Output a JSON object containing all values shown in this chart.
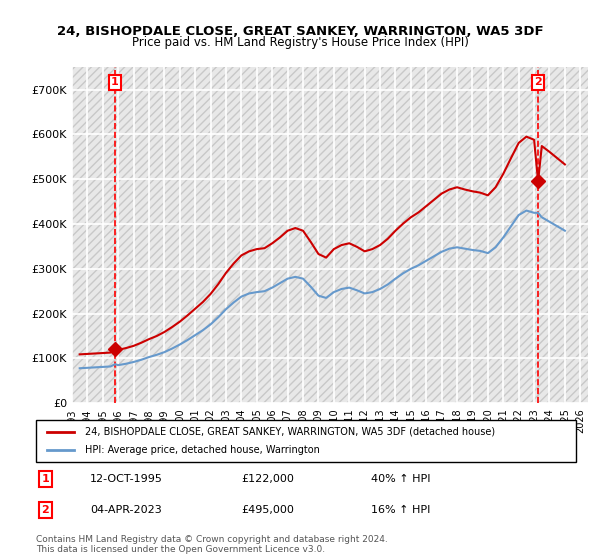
{
  "title_line1": "24, BISHOPDALE CLOSE, GREAT SANKEY, WARRINGTON, WA5 3DF",
  "title_line2": "Price paid vs. HM Land Registry's House Price Index (HPI)",
  "xlabel": "",
  "ylabel": "",
  "ylim": [
    0,
    750000
  ],
  "yticks": [
    0,
    100000,
    200000,
    300000,
    400000,
    500000,
    600000,
    700000
  ],
  "ytick_labels": [
    "£0",
    "£100K",
    "£200K",
    "£300K",
    "£400K",
    "£500K",
    "£600K",
    "£700K"
  ],
  "background_color": "#ffffff",
  "plot_bg_color": "#f0f0f0",
  "hatch_color": "#d8d8d8",
  "grid_color": "#ffffff",
  "legend_entry1": "24, BISHOPDALE CLOSE, GREAT SANKEY, WARRINGTON, WA5 3DF (detached house)",
  "legend_entry2": "HPI: Average price, detached house, Warrington",
  "sale1_date": "12-OCT-1995",
  "sale1_price": 122000,
  "sale1_hpi": "40% ↑ HPI",
  "sale2_date": "04-APR-2023",
  "sale2_price": 495000,
  "sale2_hpi": "16% ↑ HPI",
  "footer": "Contains HM Land Registry data © Crown copyright and database right 2024.\nThis data is licensed under the Open Government Licence v3.0.",
  "line_color_red": "#cc0000",
  "line_color_blue": "#6699cc",
  "marker_color": "#cc0000",
  "sale_years": [
    1995.79,
    2023.26
  ],
  "hpi_x": [
    1993.5,
    1994.0,
    1994.5,
    1995.0,
    1995.5,
    1995.79,
    1996.0,
    1996.5,
    1997.0,
    1997.5,
    1998.0,
    1998.5,
    1999.0,
    1999.5,
    2000.0,
    2000.5,
    2001.0,
    2001.5,
    2002.0,
    2002.5,
    2003.0,
    2003.5,
    2004.0,
    2004.5,
    2005.0,
    2005.5,
    2006.0,
    2006.5,
    2007.0,
    2007.5,
    2008.0,
    2008.5,
    2009.0,
    2009.5,
    2010.0,
    2010.5,
    2011.0,
    2011.5,
    2012.0,
    2012.5,
    2013.0,
    2013.5,
    2014.0,
    2014.5,
    2015.0,
    2015.5,
    2016.0,
    2016.5,
    2017.0,
    2017.5,
    2018.0,
    2018.5,
    2019.0,
    2019.5,
    2020.0,
    2020.5,
    2021.0,
    2021.5,
    2022.0,
    2022.5,
    2023.0,
    2023.26,
    2023.5,
    2024.0,
    2024.5,
    2025.0
  ],
  "hpi_y": [
    78000,
    79000,
    80000,
    81000,
    82000,
    87000,
    85000,
    88000,
    92000,
    97000,
    103000,
    108000,
    114000,
    122000,
    131000,
    141000,
    152000,
    163000,
    176000,
    192000,
    210000,
    225000,
    238000,
    245000,
    248000,
    250000,
    258000,
    268000,
    278000,
    282000,
    278000,
    260000,
    240000,
    235000,
    248000,
    255000,
    258000,
    252000,
    245000,
    248000,
    255000,
    265000,
    278000,
    290000,
    300000,
    308000,
    318000,
    328000,
    338000,
    345000,
    348000,
    345000,
    342000,
    340000,
    335000,
    348000,
    370000,
    395000,
    420000,
    430000,
    425000,
    425000,
    415000,
    405000,
    395000,
    385000
  ],
  "red_x": [
    1993.5,
    1994.0,
    1994.5,
    1995.0,
    1995.5,
    1995.79,
    1996.0,
    1996.5,
    1997.0,
    1997.5,
    1998.0,
    1998.5,
    1999.0,
    1999.5,
    2000.0,
    2000.5,
    2001.0,
    2001.5,
    2002.0,
    2002.5,
    2003.0,
    2003.5,
    2004.0,
    2004.5,
    2005.0,
    2005.5,
    2006.0,
    2006.5,
    2007.0,
    2007.5,
    2008.0,
    2008.5,
    2009.0,
    2009.5,
    2010.0,
    2010.5,
    2011.0,
    2011.5,
    2012.0,
    2012.5,
    2013.0,
    2013.5,
    2014.0,
    2014.5,
    2015.0,
    2015.5,
    2016.0,
    2016.5,
    2017.0,
    2017.5,
    2018.0,
    2018.5,
    2019.0,
    2019.5,
    2020.0,
    2020.5,
    2021.0,
    2021.5,
    2022.0,
    2022.5,
    2023.0,
    2023.26,
    2023.5,
    2024.0,
    2024.5,
    2025.0
  ],
  "red_y": [
    109000,
    110000,
    111000,
    112000,
    113000,
    122000,
    119000,
    123000,
    128000,
    135000,
    143000,
    150000,
    159000,
    170000,
    182000,
    196000,
    211000,
    226000,
    244000,
    266000,
    291000,
    312000,
    330000,
    339000,
    344000,
    346000,
    357000,
    370000,
    385000,
    391000,
    385000,
    360000,
    333000,
    325000,
    344000,
    353000,
    357000,
    349000,
    339000,
    344000,
    353000,
    367000,
    385000,
    401000,
    415000,
    426000,
    440000,
    454000,
    468000,
    477000,
    482000,
    477000,
    473000,
    470000,
    464000,
    482000,
    512000,
    547000,
    581000,
    595000,
    588000,
    495000,
    574000,
    561000,
    547000,
    533000
  ],
  "xtick_years": [
    1993,
    1994,
    1995,
    1996,
    1997,
    1998,
    1999,
    2000,
    2001,
    2002,
    2003,
    2004,
    2005,
    2006,
    2007,
    2008,
    2009,
    2010,
    2011,
    2012,
    2013,
    2014,
    2015,
    2016,
    2017,
    2018,
    2019,
    2020,
    2021,
    2022,
    2023,
    2024,
    2025,
    2026
  ],
  "xlim": [
    1993.0,
    2026.5
  ]
}
